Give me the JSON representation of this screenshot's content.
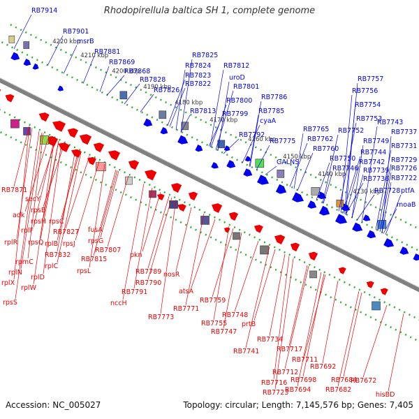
{
  "title": "Rhodopirellula baltica SH 1, complete genome",
  "footer": {
    "accession": "Accession: NC_005027",
    "stats": "Topology: circular; Length: 7,145,576 bp; Genes: 7,405"
  },
  "colors": {
    "forward": "#0000ee",
    "reverse": "#ee0000",
    "backbone": "#808080",
    "tick": "#33aa33"
  },
  "kbp_ticks": [
    "4220 kbp",
    "4210 kbp",
    "4200 kbp",
    "4190 kbp",
    "4180 kbp",
    "4170 kbp",
    "4160 kbp",
    "4150 kbp",
    "4140 kbp",
    "4130 kbp"
  ],
  "forward_labels": [
    "RB7914",
    "RB7901",
    "msrB",
    "RB7881",
    "RB7869",
    "RB7868",
    "RB7828",
    "RB7826",
    "RB7825",
    "RB7824",
    "RB7823",
    "RB7822",
    "RB7812",
    "uroD",
    "RB7813",
    "RB7801",
    "RB7800",
    "RB7799",
    "RB7786",
    "RB7785",
    "cyaA",
    "RB7792",
    "RB7775",
    "GALNS",
    "RB7765",
    "RB7762",
    "RB7760",
    "RB7757",
    "RB7756",
    "RB7754",
    "RB7753",
    "RB7752",
    "RB7750",
    "RB7749",
    "RB7746",
    "RB7744",
    "RB7743",
    "RB7742",
    "RB7739",
    "RB7737",
    "RB7736",
    "RB7731",
    "RB7729",
    "RB7726",
    "RB7722",
    "RB7728",
    "ptfA",
    "moaB"
  ],
  "reverse_labels": [
    "RB7871",
    "secY",
    "rpsE",
    "adk",
    "rpsH",
    "rpsC",
    "rplF",
    "RB7827",
    "rplR",
    "rpsQ",
    "rplB",
    "rpsJ",
    "rpmC",
    "RB7832",
    "rplN",
    "rplC",
    "rplX",
    "rplD",
    "rplW",
    "rpsS",
    "fusA",
    "rpsG",
    "RB7807",
    "RB7815",
    "rpsL",
    "pkn",
    "RB7789",
    "RB7790",
    "nosR",
    "RB7791",
    "nccH",
    "atsA",
    "RB7773",
    "RB7771",
    "RB7759",
    "RB7748",
    "RB7755",
    "RB7747",
    "prtB",
    "RB7741",
    "RB7734",
    "RB7717",
    "RB7711",
    "RB7712",
    "RB7716",
    "RB7723",
    "RB7698",
    "RB7694",
    "RB7692",
    "RB7684",
    "RB7682",
    "RB7672",
    "hisBD"
  ]
}
